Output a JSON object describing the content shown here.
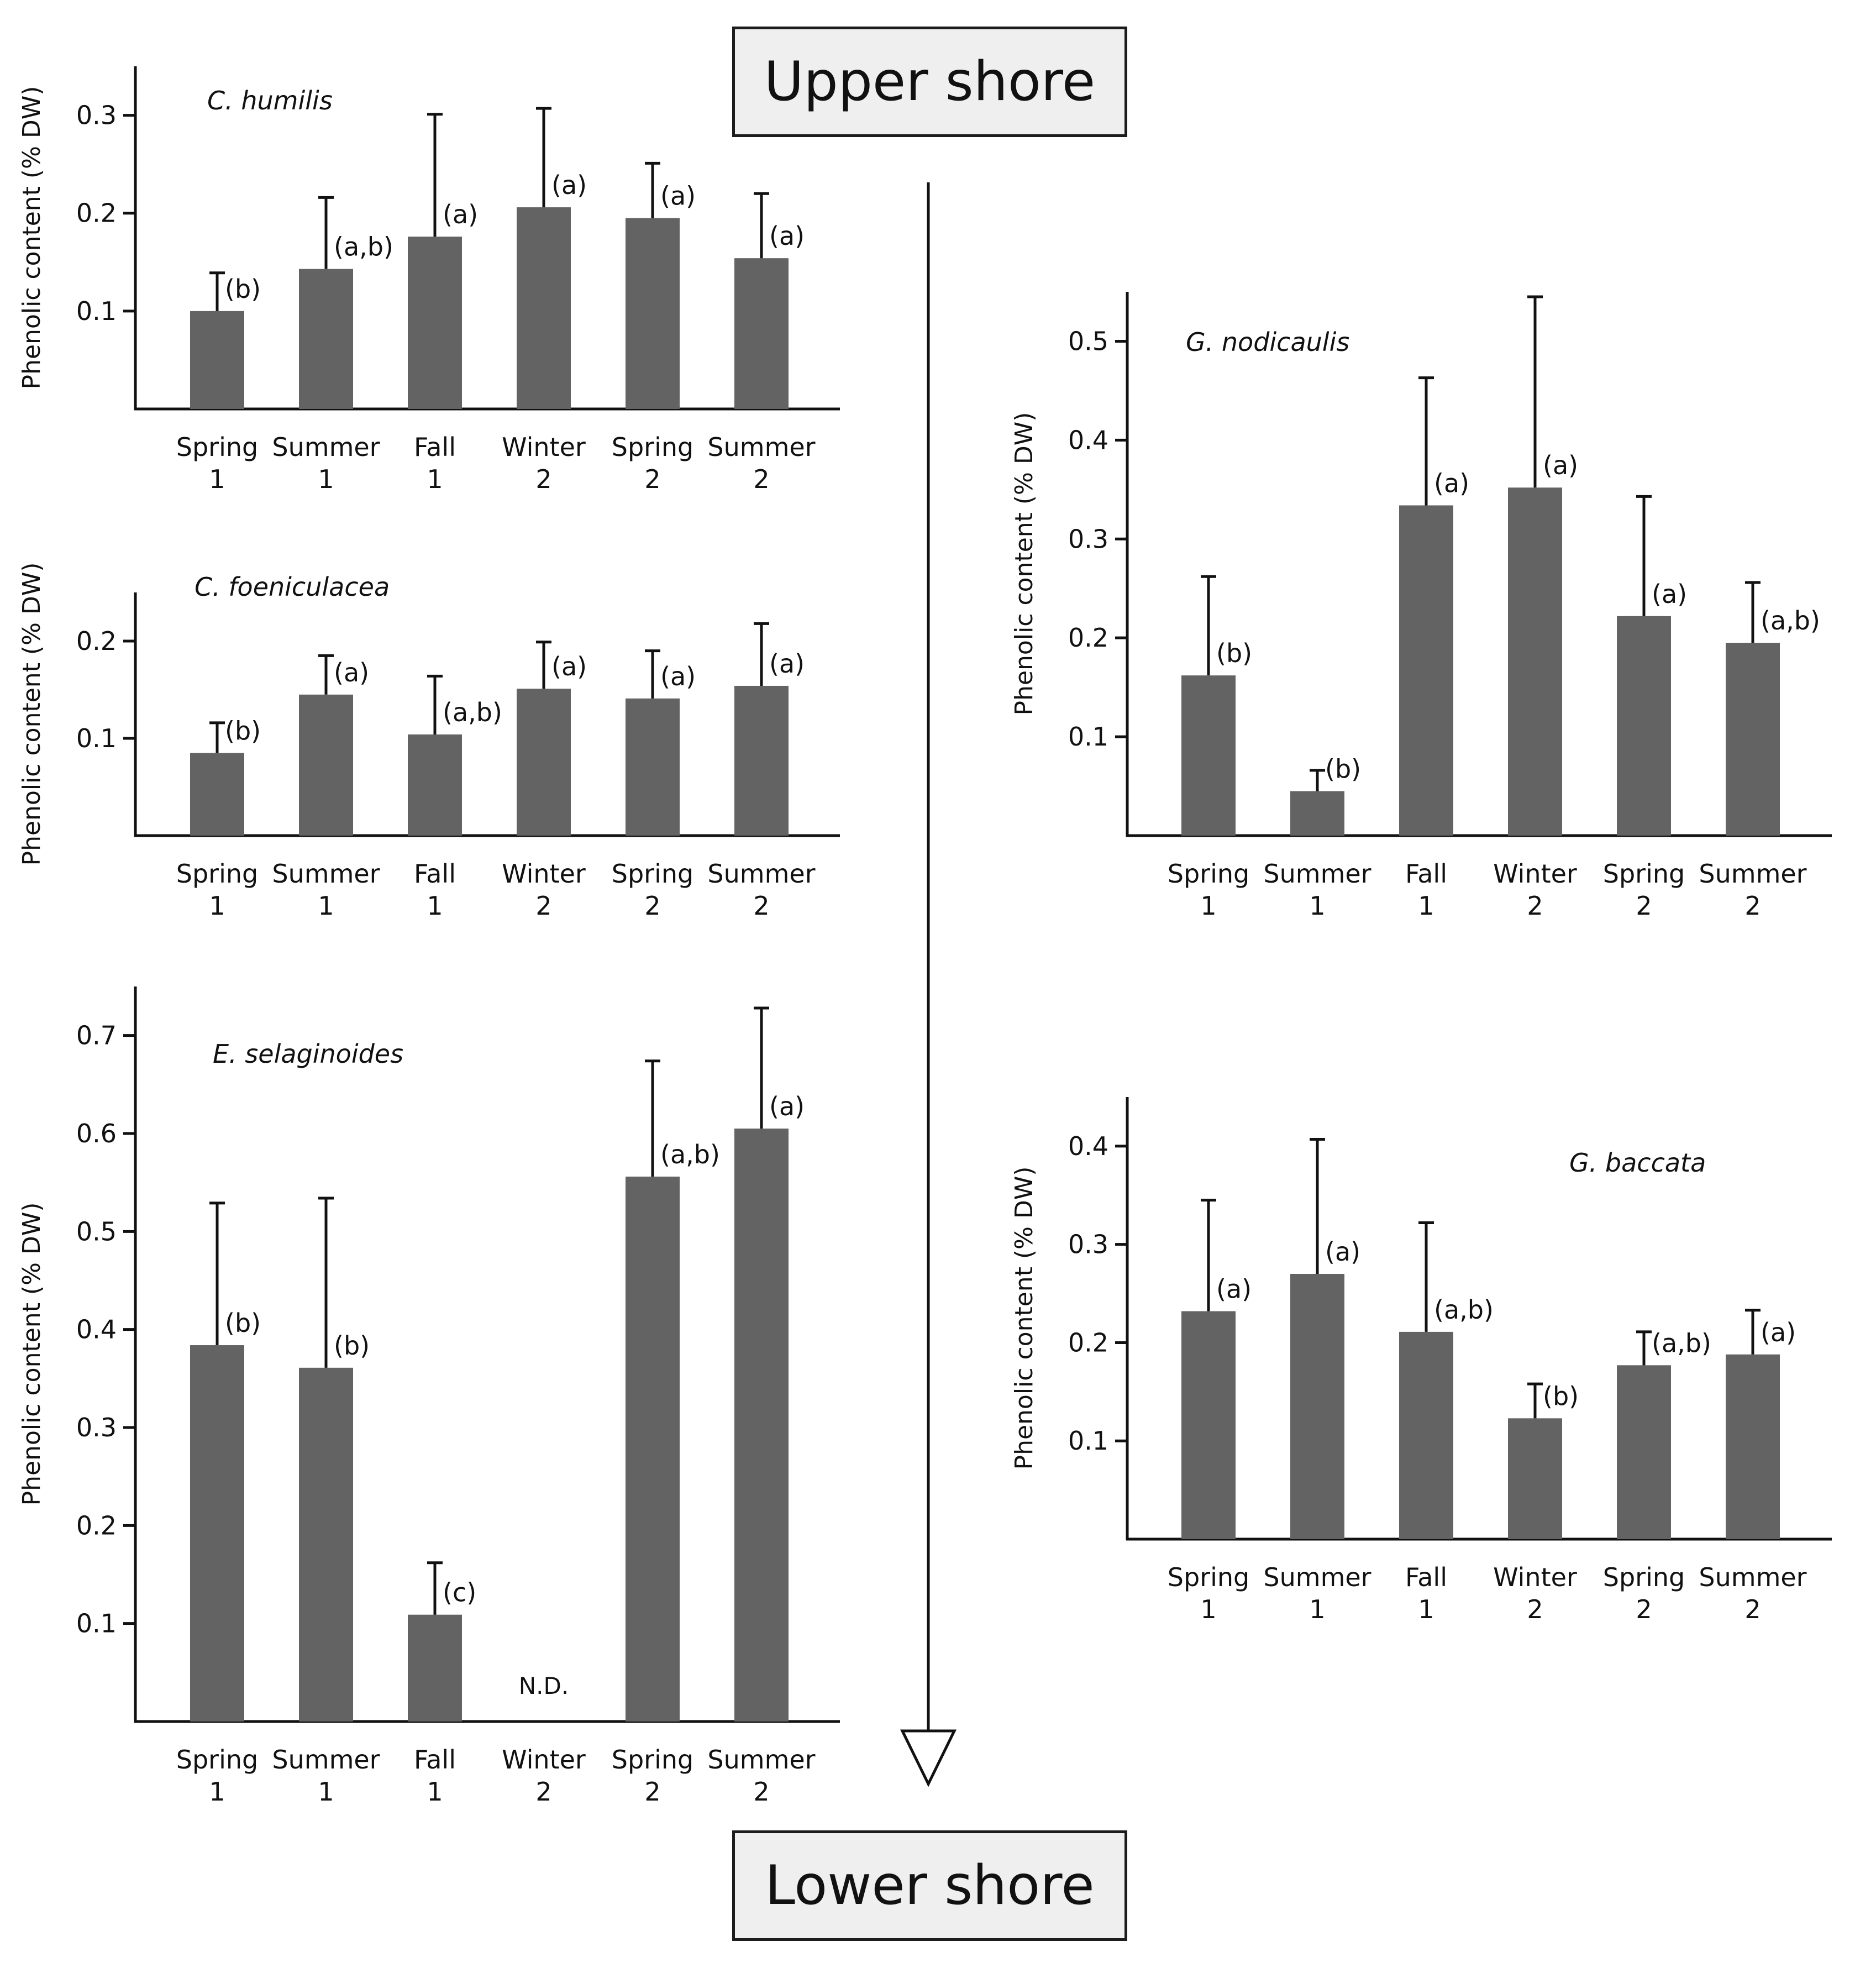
{
  "header": {
    "upper_label": "Upper shore",
    "lower_label": "Lower shore"
  },
  "colors": {
    "bar": "#636363",
    "axis": "#111111",
    "nd_text": "#a6a6a6",
    "box_bg": "#efefef"
  },
  "chart_data": [
    {
      "id": "c-humilis",
      "type": "bar",
      "title": "C. humilis",
      "ylabel": "Phenolic content (% DW)",
      "ylim": [
        0,
        0.35
      ],
      "yticks": [
        0.1,
        0.2,
        0.3
      ],
      "ytick_labels": [
        "0.1",
        "0.2",
        "0.3"
      ],
      "categories": [
        "Spring 1",
        "Summer 1",
        "Fall 1",
        "Winter 2",
        "Spring 2",
        "Summer 2"
      ],
      "category_lines": [
        [
          "Spring",
          "1"
        ],
        [
          "Summer",
          "1"
        ],
        [
          "Fall",
          "1"
        ],
        [
          "Winter",
          "2"
        ],
        [
          "Spring",
          "2"
        ],
        [
          "Summer",
          "2"
        ]
      ],
      "values": [
        0.1,
        0.143,
        0.176,
        0.206,
        0.195,
        0.154
      ],
      "errors": [
        0.039,
        0.073,
        0.125,
        0.101,
        0.056,
        0.066
      ],
      "letters": [
        "(b)",
        "(a,b)",
        "(a)",
        "(a)",
        "(a)",
        "(a)"
      ]
    },
    {
      "id": "c-foeniculacea",
      "type": "bar",
      "title": "C. foeniculacea",
      "ylabel": "Phenolic content (% DW)",
      "ylim": [
        0,
        0.25
      ],
      "yticks": [
        0.1,
        0.2
      ],
      "ytick_labels": [
        "0.1",
        "0.2"
      ],
      "categories": [
        "Spring 1",
        "Summer 1",
        "Fall 1",
        "Winter 2",
        "Spring 2",
        "Summer 2"
      ],
      "category_lines": [
        [
          "Spring",
          "1"
        ],
        [
          "Summer",
          "1"
        ],
        [
          "Fall",
          "1"
        ],
        [
          "Winter",
          "2"
        ],
        [
          "Spring",
          "2"
        ],
        [
          "Summer",
          "2"
        ]
      ],
      "values": [
        0.085,
        0.145,
        0.104,
        0.151,
        0.141,
        0.154
      ],
      "errors": [
        0.031,
        0.04,
        0.06,
        0.048,
        0.049,
        0.064
      ],
      "letters": [
        "(b)",
        "(a)",
        "(a,b)",
        "(a)",
        "(a)",
        "(a)"
      ]
    },
    {
      "id": "e-selaginoides",
      "type": "bar",
      "title": "E. selaginoides",
      "ylabel": "Phenolic content (% DW)",
      "ylim": [
        0,
        0.75
      ],
      "yticks": [
        0.1,
        0.2,
        0.3,
        0.4,
        0.5,
        0.6,
        0.7
      ],
      "ytick_labels": [
        "0.1",
        "0.2",
        "0.3",
        "0.4",
        "0.5",
        "0.6",
        "0.7"
      ],
      "categories": [
        "Spring 1",
        "Summer 1",
        "Fall 1",
        "Winter 2",
        "Spring 2",
        "Summer 2"
      ],
      "category_lines": [
        [
          "Spring",
          "1"
        ],
        [
          "Summer",
          "1"
        ],
        [
          "Fall",
          "1"
        ],
        [
          "Winter",
          "2"
        ],
        [
          "Spring",
          "2"
        ],
        [
          "Summer",
          "2"
        ]
      ],
      "values": [
        0.384,
        0.361,
        0.109,
        null,
        0.556,
        0.605
      ],
      "errors": [
        0.145,
        0.173,
        0.053,
        null,
        0.118,
        0.123
      ],
      "letters": [
        "(b)",
        "(b)",
        "(c)",
        "N.D.",
        "(a,b)",
        "(a)"
      ]
    },
    {
      "id": "g-nodicaulis",
      "type": "bar",
      "title": "G. nodicaulis",
      "ylabel": "Phenolic content (% DW)",
      "ylim": [
        0,
        0.55
      ],
      "yticks": [
        0.1,
        0.2,
        0.3,
        0.4,
        0.5
      ],
      "ytick_labels": [
        "0.1",
        "0.2",
        "0.3",
        "0.4",
        "0.5"
      ],
      "categories": [
        "Spring 1",
        "Summer 1",
        "Fall 1",
        "Winter 2",
        "Spring 2",
        "Summer 2"
      ],
      "category_lines": [
        [
          "Spring",
          "1"
        ],
        [
          "Summer",
          "1"
        ],
        [
          "Fall",
          "1"
        ],
        [
          "Winter",
          "2"
        ],
        [
          "Spring",
          "2"
        ],
        [
          "Summer",
          "2"
        ]
      ],
      "values": [
        0.162,
        0.045,
        0.334,
        0.352,
        0.222,
        0.195
      ],
      "errors": [
        0.1,
        0.021,
        0.129,
        0.193,
        0.121,
        0.061
      ],
      "letters": [
        "(b)",
        "(b)",
        "(a)",
        "(a)",
        "(a)",
        "(a,b)"
      ]
    },
    {
      "id": "g-baccata",
      "type": "bar",
      "title": "G. baccata",
      "ylabel": "Phenolic content (% DW)",
      "ylim": [
        0,
        0.45
      ],
      "yticks": [
        0.1,
        0.2,
        0.3,
        0.4
      ],
      "ytick_labels": [
        "0.1",
        "0.2",
        "0.3",
        "0.4"
      ],
      "categories": [
        "Spring 1",
        "Summer 1",
        "Fall 1",
        "Winter 2",
        "Spring 2",
        "Summer 2"
      ],
      "category_lines": [
        [
          "Spring",
          "1"
        ],
        [
          "Summer",
          "1"
        ],
        [
          "Fall",
          "1"
        ],
        [
          "Winter",
          "2"
        ],
        [
          "Spring",
          "2"
        ],
        [
          "Summer",
          "2"
        ]
      ],
      "values": [
        0.232,
        0.27,
        0.211,
        0.123,
        0.177,
        0.188
      ],
      "errors": [
        0.113,
        0.137,
        0.111,
        0.035,
        0.034,
        0.045
      ],
      "letters": [
        "(a)",
        "(a)",
        "(a,b)",
        "(b)",
        "(a,b)",
        "(a)"
      ]
    }
  ]
}
